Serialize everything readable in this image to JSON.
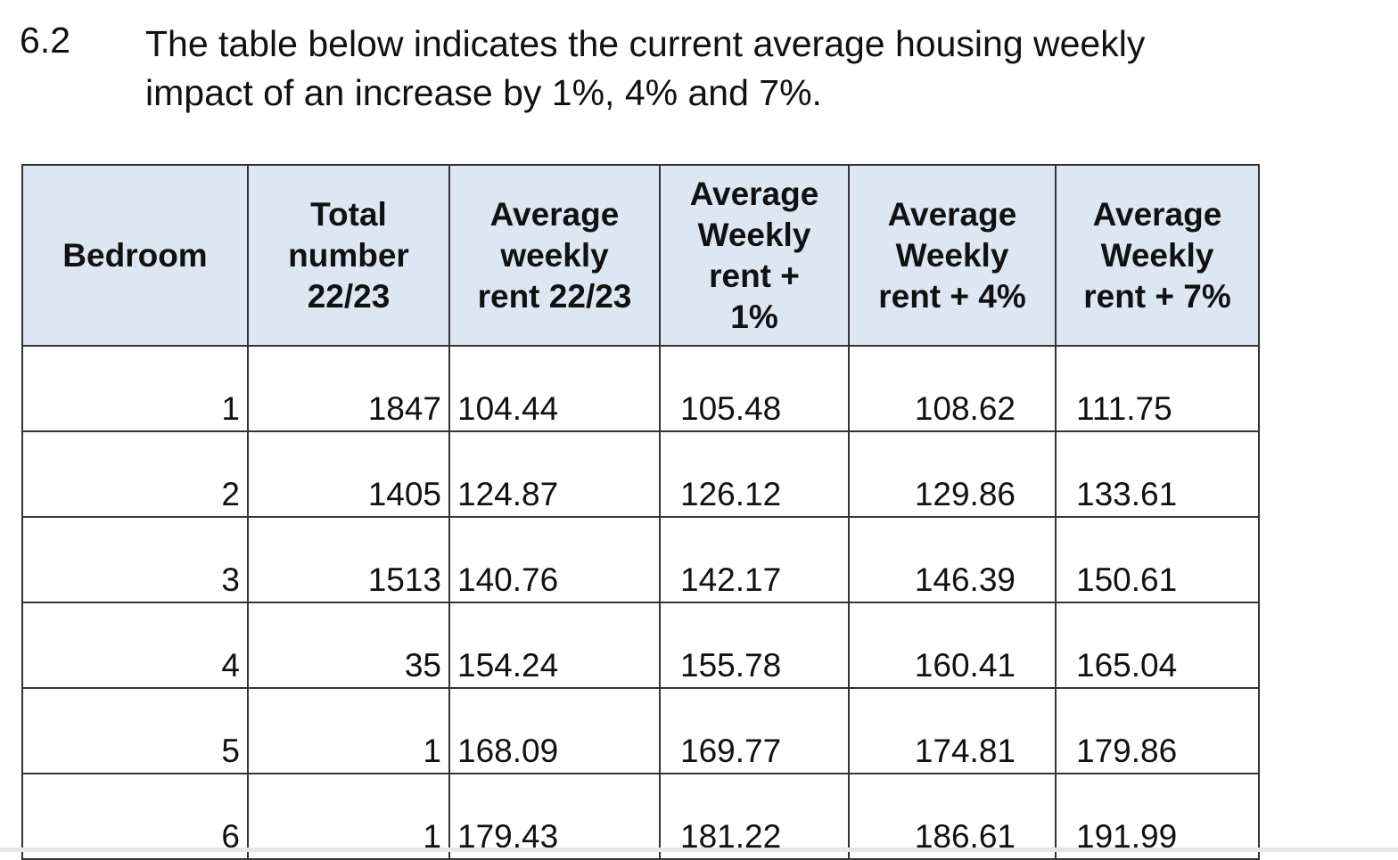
{
  "section": {
    "number": "6.2",
    "text": "The table below indicates the current average housing weekly\nimpact of an increase by 1%, 4% and 7%."
  },
  "table": {
    "header": [
      "Bedroom",
      "Total\nnumber\n22/23",
      "Average\nweekly\nrent 22/23",
      "Average\nWeekly\nrent +\n1%",
      "Average\nWeekly\nrent + 4%",
      "Average\nWeekly\nrent + 7%"
    ],
    "rows": [
      [
        "1",
        "1847",
        "104.44",
        "105.48",
        "108.62",
        "111.75"
      ],
      [
        "2",
        "1405",
        "124.87",
        "126.12",
        "129.86",
        "133.61"
      ],
      [
        "3",
        "1513",
        "140.76",
        "142.17",
        "146.39",
        "150.61"
      ],
      [
        "4",
        "35",
        "154.24",
        "155.78",
        "160.41",
        "165.04"
      ],
      [
        "5",
        "1",
        "168.09",
        "169.77",
        "174.81",
        "179.86"
      ],
      [
        "6",
        "1",
        "179.43",
        "181.22",
        "186.61",
        "191.99"
      ]
    ]
  }
}
